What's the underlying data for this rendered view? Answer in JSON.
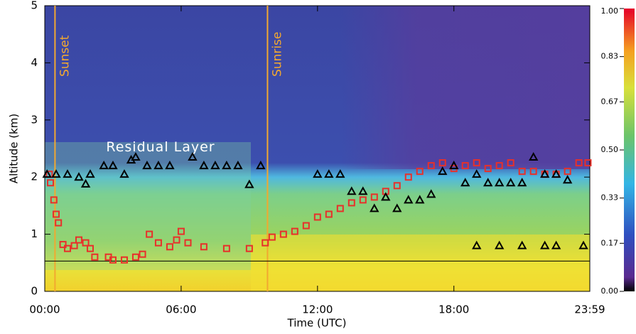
{
  "chart_data": {
    "type": "scatter",
    "xlabel": "Time (UTC)",
    "ylabel": "Altitude (km)",
    "xlim": [
      0,
      23.98
    ],
    "ylim": [
      0,
      5
    ],
    "xticks": [
      {
        "value": 0,
        "label": "00:00"
      },
      {
        "value": 6,
        "label": "06:00"
      },
      {
        "value": 12,
        "label": "12:00"
      },
      {
        "value": 18,
        "label": "18:00"
      },
      {
        "value": 23.98,
        "label": "23:59"
      }
    ],
    "yticks": [
      0,
      1,
      2,
      3,
      4,
      5
    ],
    "clim": [
      0,
      1
    ],
    "cticks": [
      {
        "value": 0,
        "label": "0.00"
      },
      {
        "value": 0.17,
        "label": "0.17"
      },
      {
        "value": 0.33,
        "label": "0.33"
      },
      {
        "value": 0.5,
        "label": "0.50"
      },
      {
        "value": 0.67,
        "label": "0.67"
      },
      {
        "value": 0.83,
        "label": "0.83"
      },
      {
        "value": 1,
        "label": "1.00"
      }
    ],
    "annotations": [
      {
        "text": "Sunset",
        "x": 0.45
      },
      {
        "text": "Sunrise",
        "x": 9.8
      },
      {
        "text": "Residual Layer",
        "x": 2.7,
        "y": 2.52
      }
    ],
    "hline": 0.53,
    "series": [
      {
        "marker": "square",
        "color": "#e8302a",
        "x": [
          0.2,
          0.25,
          0.4,
          0.5,
          0.6,
          0.8,
          1.0,
          1.3,
          1.5,
          1.8,
          2.0,
          2.2,
          2.8,
          3.0,
          3.5,
          4.0,
          4.3,
          4.6,
          5.0,
          5.5,
          5.8,
          6.0,
          6.3,
          7.0,
          8.0,
          9.0,
          9.7,
          10.0,
          10.5,
          11.0,
          11.5,
          12.0,
          12.5,
          13.0,
          13.5,
          14.0,
          14.5,
          15.0,
          15.5,
          16.0,
          16.5,
          17.0,
          17.5,
          18.0,
          18.5,
          19.0,
          19.5,
          20.0,
          20.5,
          21.0,
          21.5,
          22.0,
          22.5,
          23.0,
          23.5,
          23.9
        ],
        "values": [
          2.05,
          1.9,
          1.6,
          1.35,
          1.2,
          0.82,
          0.75,
          0.8,
          0.9,
          0.85,
          0.75,
          0.6,
          0.6,
          0.55,
          0.55,
          0.6,
          0.65,
          1.0,
          0.85,
          0.78,
          0.9,
          1.05,
          0.85,
          0.78,
          0.75,
          0.75,
          0.85,
          0.95,
          1.0,
          1.05,
          1.15,
          1.3,
          1.35,
          1.45,
          1.55,
          1.6,
          1.65,
          1.75,
          1.85,
          2.0,
          2.1,
          2.2,
          2.25,
          2.15,
          2.2,
          2.25,
          2.15,
          2.2,
          2.25,
          2.1,
          2.1,
          2.05,
          2.05,
          2.1,
          2.25,
          2.25
        ]
      },
      {
        "marker": "triangle",
        "color": "#000000",
        "x": [
          0.1,
          0.5,
          1.0,
          1.5,
          1.8,
          2.0,
          2.6,
          3.0,
          3.5,
          3.8,
          4.0,
          4.5,
          5.0,
          5.5,
          6.5,
          7.0,
          7.5,
          8.0,
          8.5,
          9.0,
          9.5,
          12.0,
          12.5,
          13.0,
          13.5,
          14.0,
          14.5,
          15.0,
          15.5,
          16.0,
          16.5,
          17.0,
          17.5,
          18.0,
          18.5,
          19.0,
          19.5,
          20.0,
          20.5,
          21.0,
          21.5,
          22.0,
          22.5,
          23.0,
          19.0,
          20.0,
          21.0,
          22.0,
          22.5,
          23.7
        ],
        "values": [
          2.05,
          2.05,
          2.05,
          2.0,
          1.88,
          2.05,
          2.2,
          2.2,
          2.05,
          2.3,
          2.35,
          2.2,
          2.2,
          2.2,
          2.35,
          2.2,
          2.2,
          2.2,
          2.2,
          1.87,
          2.2,
          2.05,
          2.05,
          2.05,
          1.75,
          1.75,
          1.45,
          1.65,
          1.45,
          1.6,
          1.6,
          1.7,
          2.1,
          2.2,
          1.9,
          2.05,
          1.9,
          1.9,
          1.9,
          1.9,
          2.35,
          2.05,
          2.05,
          1.95,
          0.8,
          0.8,
          0.8,
          0.8,
          0.8,
          0.8
        ]
      }
    ]
  }
}
